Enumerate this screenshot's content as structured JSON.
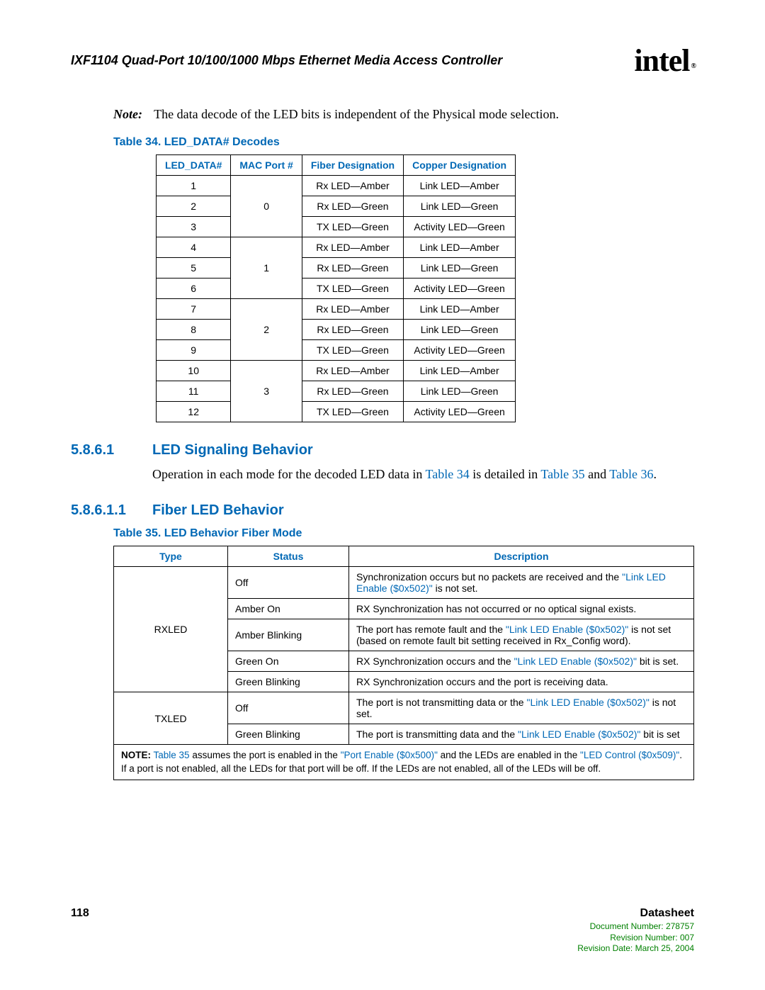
{
  "header": {
    "title": "IXF1104 Quad-Port 10/100/1000 Mbps Ethernet Media Access Controller",
    "logo_text": "intel",
    "logo_reg": "®"
  },
  "note": {
    "label": "Note:",
    "text": "The data decode of the LED bits is independent of the Physical mode selection."
  },
  "table34": {
    "caption": "Table 34. LED_DATA# Decodes",
    "headers": [
      "LED_DATA#",
      "MAC Port #",
      "Fiber Designation",
      "Copper Designation"
    ],
    "groups": [
      {
        "port": "0",
        "rows": [
          {
            "d": "1",
            "f": "Rx LED—Amber",
            "c": "Link LED—Amber"
          },
          {
            "d": "2",
            "f": "Rx LED—Green",
            "c": "Link LED—Green"
          },
          {
            "d": "3",
            "f": "TX LED—Green",
            "c": "Activity LED—Green"
          }
        ]
      },
      {
        "port": "1",
        "rows": [
          {
            "d": "4",
            "f": "Rx LED—Amber",
            "c": "Link LED—Amber"
          },
          {
            "d": "5",
            "f": "Rx LED—Green",
            "c": "Link LED—Green"
          },
          {
            "d": "6",
            "f": "TX LED—Green",
            "c": "Activity LED—Green"
          }
        ]
      },
      {
        "port": "2",
        "rows": [
          {
            "d": "7",
            "f": "Rx LED—Amber",
            "c": "Link LED—Amber"
          },
          {
            "d": "8",
            "f": "Rx LED—Green",
            "c": "Link LED—Green"
          },
          {
            "d": "9",
            "f": "TX LED—Green",
            "c": "Activity LED—Green"
          }
        ]
      },
      {
        "port": "3",
        "rows": [
          {
            "d": "10",
            "f": "Rx LED—Amber",
            "c": "Link LED—Amber"
          },
          {
            "d": "11",
            "f": "Rx LED—Green",
            "c": "Link LED—Green"
          },
          {
            "d": "12",
            "f": "TX LED—Green",
            "c": "Activity LED—Green"
          }
        ]
      }
    ]
  },
  "section1": {
    "num": "5.8.6.1",
    "title": "LED Signaling Behavior",
    "body_pre": "Operation in each mode for the decoded LED data in ",
    "link1": "Table 34",
    "mid1": " is detailed in ",
    "link2": "Table 35",
    "mid2": " and ",
    "link3": "Table 36",
    "end": "."
  },
  "section2": {
    "num": "5.8.6.1.1",
    "title": "Fiber LED Behavior"
  },
  "table35": {
    "caption": "Table 35. LED Behavior Fiber Mode",
    "headers": [
      "Type",
      "Status",
      "Description"
    ],
    "rxled": {
      "type": "RXLED",
      "rows": [
        {
          "status": "Off",
          "d_pre": "Synchronization occurs but no packets are received and the ",
          "link": "\"Link LED Enable ($0x502)\"",
          "d_post": " is not set."
        },
        {
          "status": "Amber On",
          "d_pre": "RX Synchronization has not occurred or no optical signal exists.",
          "link": "",
          "d_post": ""
        },
        {
          "status": "Amber Blinking",
          "d_pre": "The port has remote fault and the ",
          "link": "\"Link LED Enable ($0x502)\"",
          "d_post": " is not set (based on remote fault bit setting received in Rx_Config word)."
        },
        {
          "status": "Green On",
          "d_pre": "RX Synchronization occurs and the ",
          "link": "\"Link LED Enable ($0x502)\"",
          "d_post": " bit is set."
        },
        {
          "status": "Green Blinking",
          "d_pre": "RX Synchronization occurs and the port is receiving data.",
          "link": "",
          "d_post": ""
        }
      ]
    },
    "txled": {
      "type": "TXLED",
      "rows": [
        {
          "status": "Off",
          "d_pre": "The port is not transmitting data or the ",
          "link": "\"Link LED Enable ($0x502)\"",
          "d_post": " is not set."
        },
        {
          "status": "Green Blinking",
          "d_pre": "The port is transmitting data and the ",
          "link": "\"Link LED Enable ($0x502)\"",
          "d_post": " bit is set"
        }
      ]
    },
    "note": {
      "label": "NOTE:",
      "pre": " ",
      "link1": "Table 35",
      "mid1": " assumes the port is enabled in the ",
      "link2": "\"Port Enable ($0x500)\"",
      "mid2": " and the LEDs are enabled in the ",
      "link3": "\"LED Control ($0x509)\"",
      "post": ". If a port is not enabled, all the LEDs for that port will be off. If the LEDs are not enabled, all of the LEDs will be off."
    }
  },
  "footer": {
    "page": "118",
    "label": "Datasheet",
    "docnum": "Document Number: 278757",
    "revnum": "Revision Number: 007",
    "revdate": "Revision Date: March 25, 2004"
  }
}
